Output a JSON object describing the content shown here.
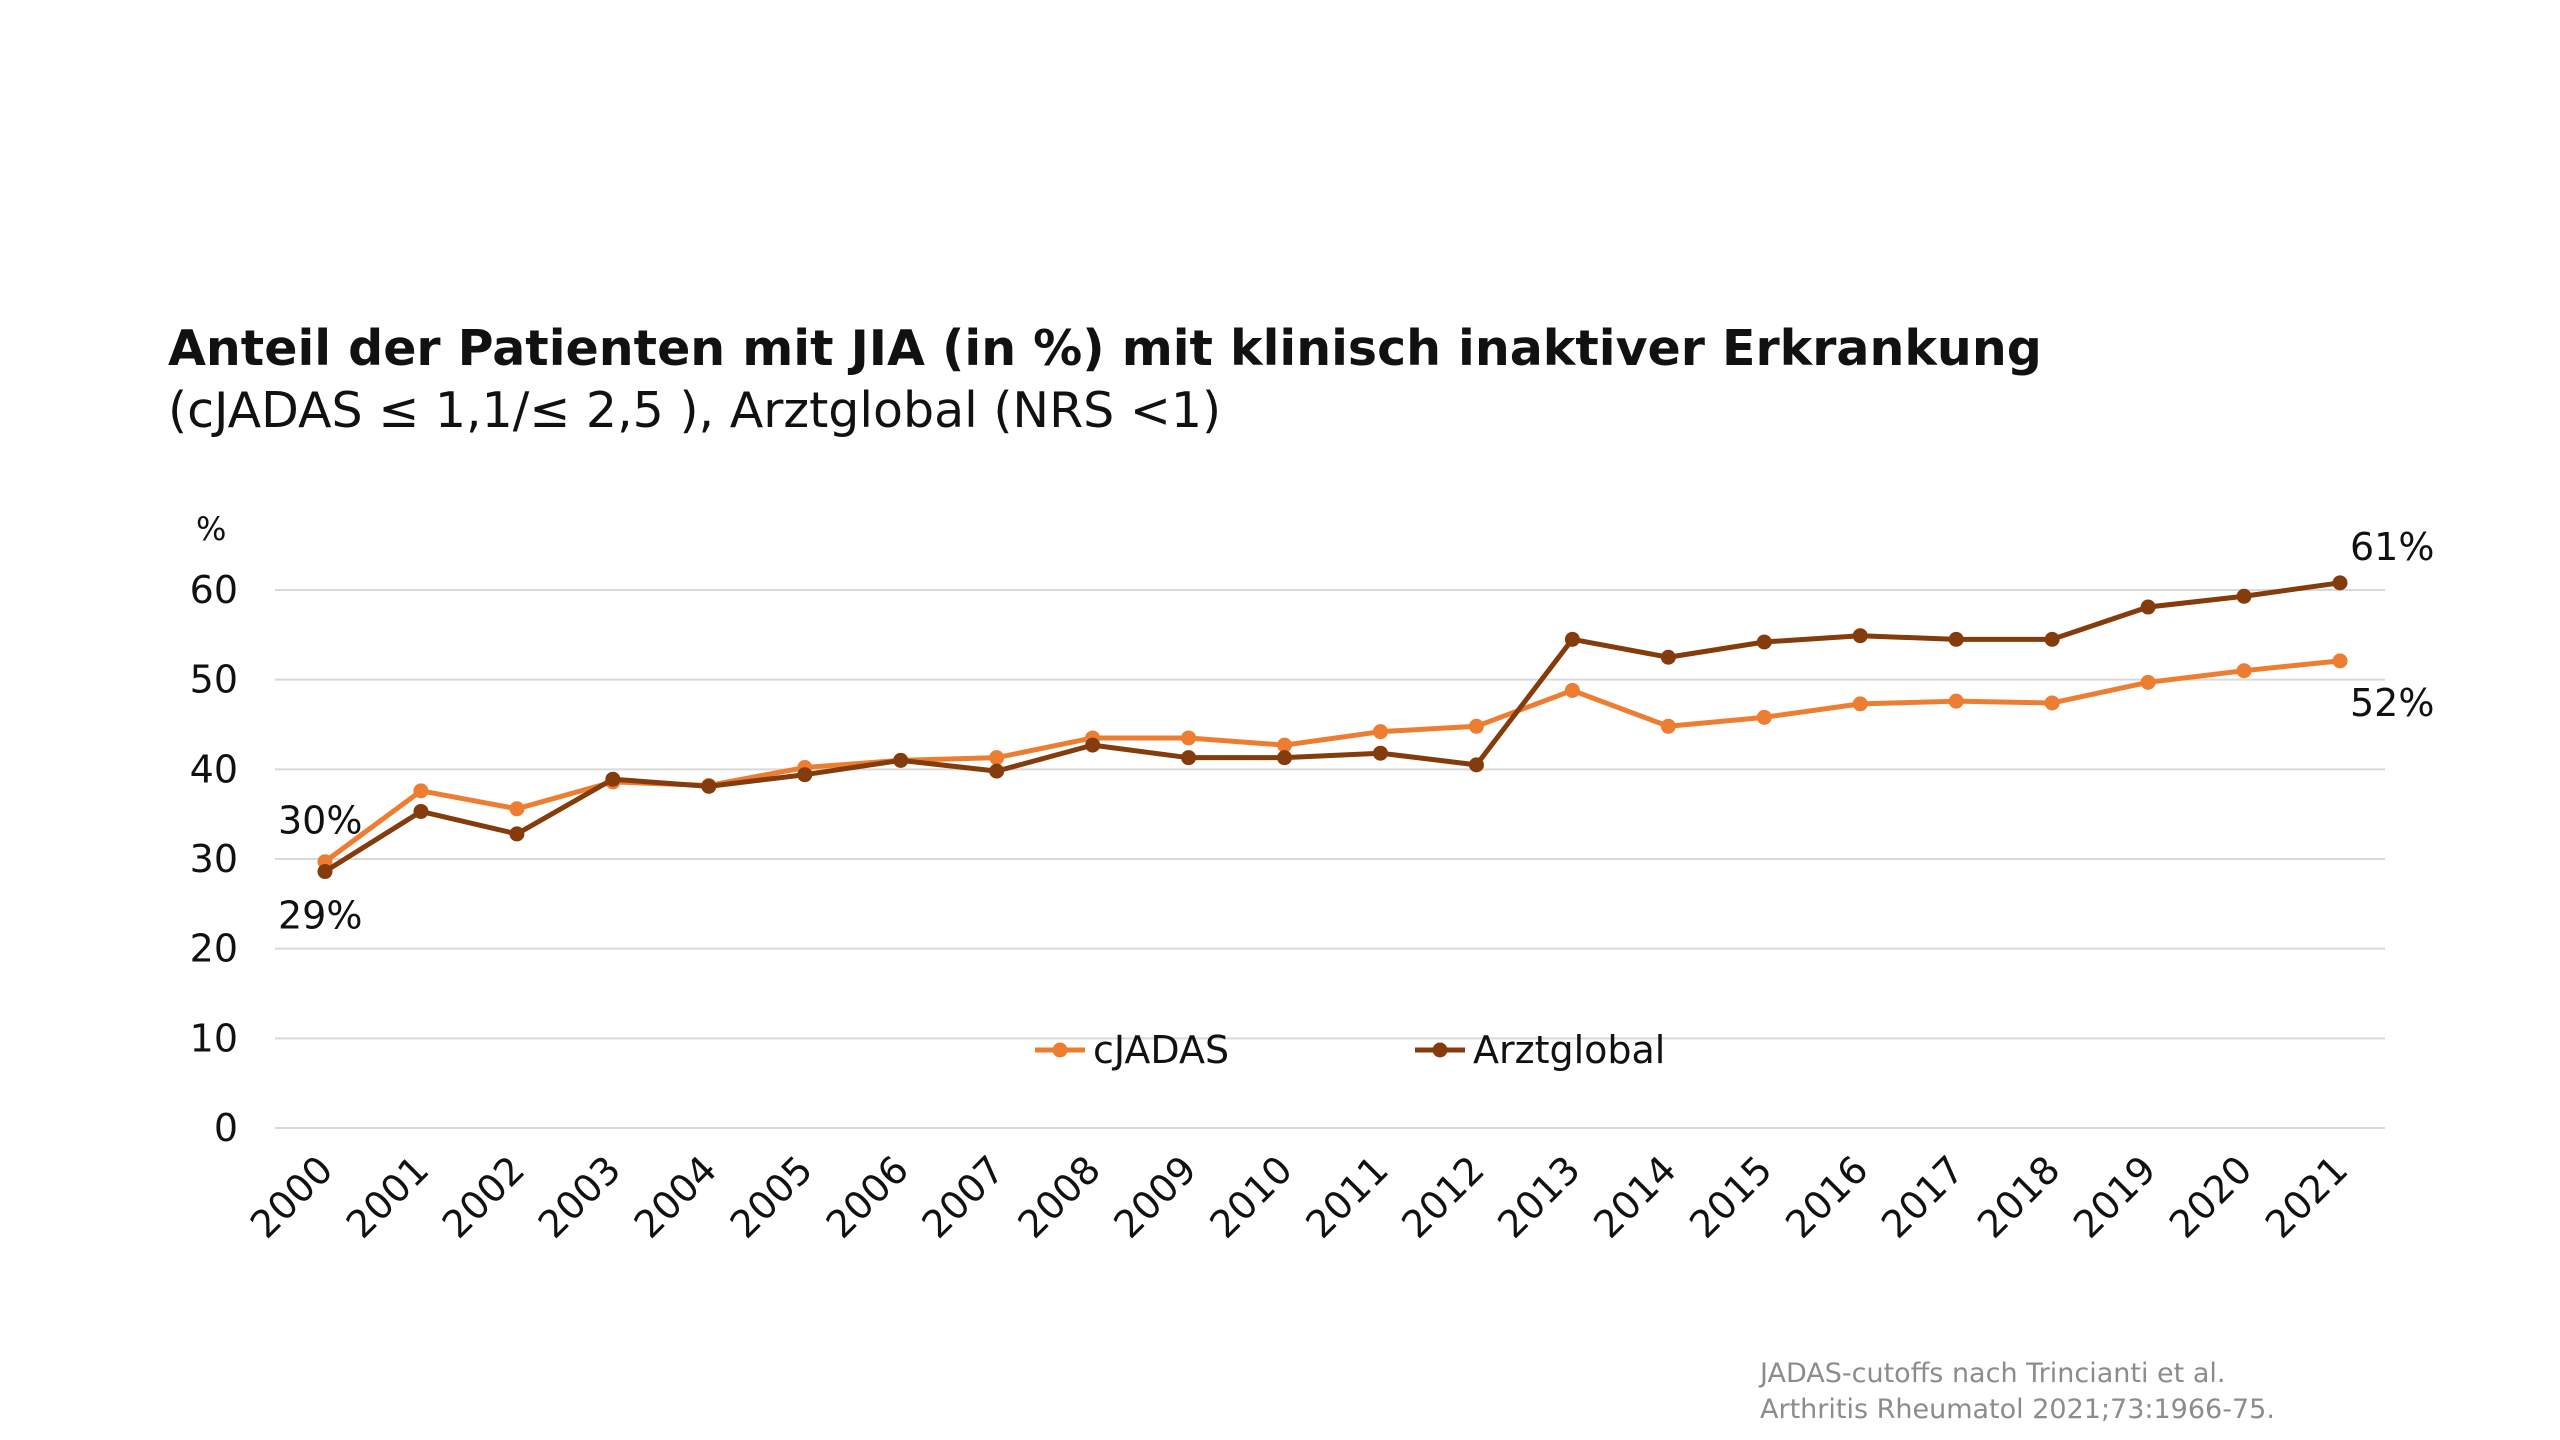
{
  "title": "Anteil der Patienten mit JIA (in %) mit klinisch inaktiver Erkrankung",
  "subtitle": "(cJADAS ≤ 1,1/≤ 2,5 ), Arztglobal (NRS <1)",
  "footnote": {
    "line1": "JADAS-cutoffs nach Trincianti et al.",
    "line2": "Arthritis Rheumatol 2021;73:1966-75."
  },
  "chart_data": {
    "type": "line",
    "title": "Anteil der Patienten mit JIA (in %) mit klinisch inaktiver Erkrankung",
    "subtitle": "(cJADAS ≤ 1,1/≤ 2,5 ), Arztglobal (NRS <1)",
    "ylabel": "%",
    "xlabel": "",
    "ylim": [
      0,
      60
    ],
    "yticks": [
      "0",
      "10",
      "20",
      "30",
      "40",
      "50",
      "60"
    ],
    "grid": true,
    "legend_placement": "bottom-center",
    "categories": [
      "2000",
      "2001",
      "2002",
      "2003",
      "2004",
      "2005",
      "2006",
      "2007",
      "2008",
      "2009",
      "2010",
      "2011",
      "2012",
      "2013",
      "2014",
      "2015",
      "2016",
      "2017",
      "2018",
      "2019",
      "2020",
      "2021"
    ],
    "series": [
      {
        "name": "cJADAS",
        "color": "#ED7D31",
        "values": [
          29.7,
          37.6,
          35.6,
          38.6,
          38.2,
          40.2,
          41.0,
          41.3,
          43.5,
          43.5,
          42.7,
          44.2,
          44.8,
          48.8,
          44.8,
          45.8,
          47.3,
          47.6,
          47.4,
          49.7,
          51.0,
          52.1
        ]
      },
      {
        "name": "Arztglobal",
        "color": "#843C0C",
        "values": [
          28.6,
          35.3,
          32.8,
          38.9,
          38.1,
          39.4,
          41.0,
          39.8,
          42.7,
          41.3,
          41.3,
          41.8,
          40.5,
          54.5,
          52.5,
          54.2,
          54.9,
          54.5,
          54.5,
          58.1,
          59.3,
          60.8
        ]
      }
    ],
    "annotations": [
      {
        "text": "30%",
        "series": "cJADAS",
        "category": "2000"
      },
      {
        "text": "29%",
        "series": "Arztglobal",
        "category": "2000"
      },
      {
        "text": "61%",
        "series": "Arztglobal",
        "category": "2021"
      },
      {
        "text": "52%",
        "series": "cJADAS",
        "category": "2021"
      }
    ]
  }
}
